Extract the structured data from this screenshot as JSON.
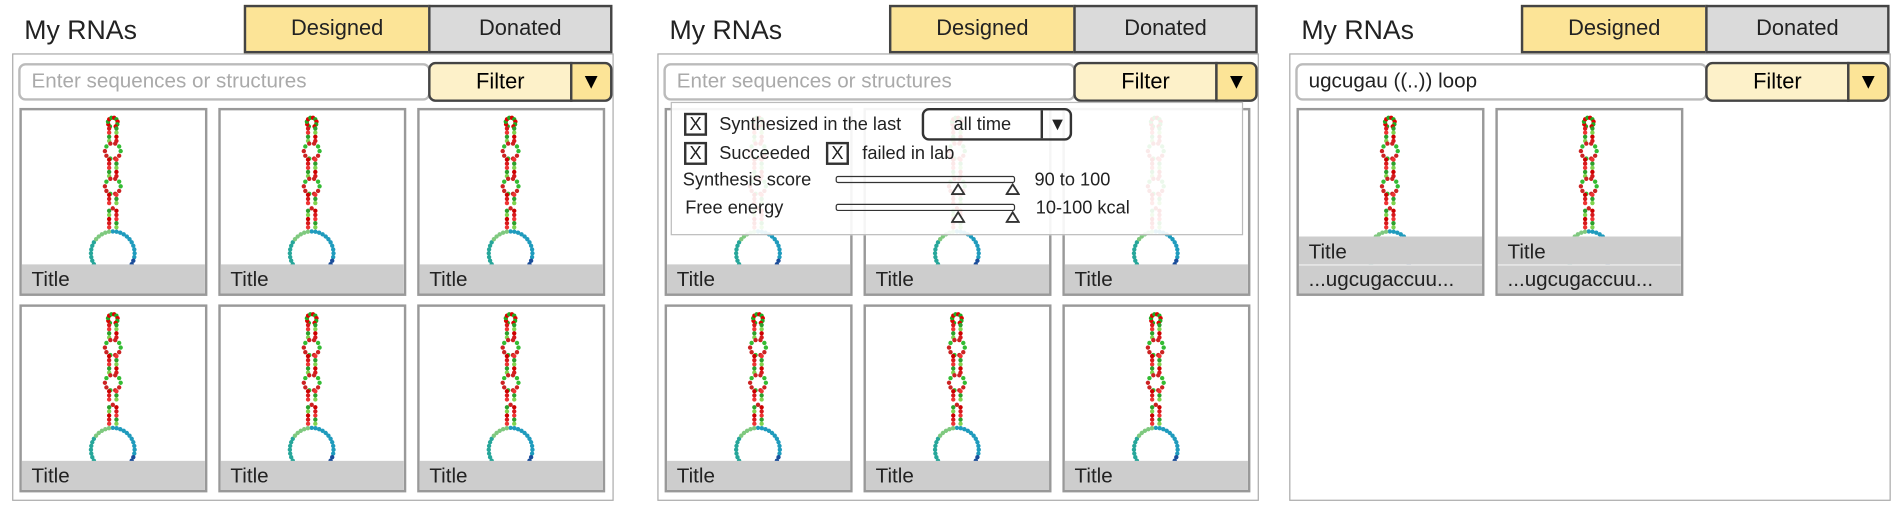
{
  "panels": [
    {
      "title": "My RNAs",
      "tabs": [
        "Designed",
        "Donated"
      ],
      "search": {
        "placeholder": "Enter sequences or structures"
      },
      "filter": {
        "label": "Filter",
        "arrow": "▼"
      },
      "cards": [
        {
          "title": "Title"
        },
        {
          "title": "Title"
        },
        {
          "title": "Title"
        },
        {
          "title": "Title"
        },
        {
          "title": "Title"
        },
        {
          "title": "Title"
        }
      ]
    },
    {
      "title": "My RNAs",
      "tabs": [
        "Designed",
        "Donated"
      ],
      "search": {
        "placeholder": "Enter sequences or structures"
      },
      "filter": {
        "label": "Filter",
        "arrow": "▼"
      },
      "filter_menu": {
        "synthesized": {
          "check": "X",
          "label": "Synthesized in the last",
          "select": "all time",
          "arrow": "▼"
        },
        "succeeded": {
          "check": "X",
          "label": "Succeeded"
        },
        "failed": {
          "check": "X",
          "label": "failed in lab"
        },
        "sliders": [
          {
            "label": "Synthesis score",
            "range": "90 to 100"
          },
          {
            "label": "Free energy",
            "range": "10-100 kcal"
          }
        ]
      },
      "cards": [
        {
          "title": "Title"
        },
        {
          "title": "Title"
        },
        {
          "title": "Title"
        },
        {
          "title": "Title"
        },
        {
          "title": "Title"
        },
        {
          "title": "Title"
        }
      ]
    },
    {
      "title": "My RNAs",
      "tabs": [
        "Designed",
        "Donated"
      ],
      "search": {
        "value": "ugcugau ((..)) loop"
      },
      "filter": {
        "label": "Filter",
        "arrow": "▼"
      },
      "cards": [
        {
          "title": "Title",
          "sequence": "...ugcugaccuu..."
        },
        {
          "title": "Title",
          "sequence": "...ugcugaccuu..."
        }
      ]
    }
  ]
}
